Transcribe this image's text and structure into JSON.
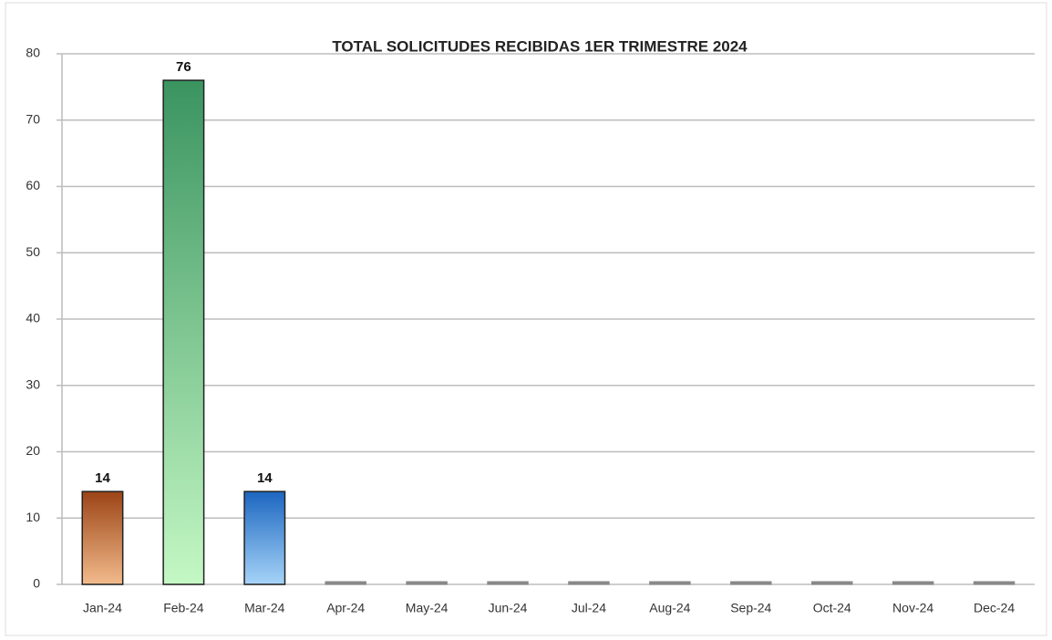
{
  "chart_data": {
    "type": "bar",
    "title": "TOTAL SOLICITUDES RECIBIDAS  1ER TRIMESTRE 2024",
    "categories": [
      "Jan-24",
      "Feb-24",
      "Mar-24",
      "Apr-24",
      "May-24",
      "Jun-24",
      "Jul-24",
      "Aug-24",
      "Sep-24",
      "Oct-24",
      "Nov-24",
      "Dec-24"
    ],
    "values": [
      14,
      76,
      14,
      0,
      0,
      0,
      0,
      0,
      0,
      0,
      0,
      0
    ],
    "colors": [
      [
        "#9c4416",
        "#f2bb8c"
      ],
      [
        "#3a9460",
        "#c4f8c4"
      ],
      [
        "#1c66c0",
        "#a6d4f8"
      ],
      [
        "#888888",
        "#888888"
      ],
      [
        "#888888",
        "#888888"
      ],
      [
        "#888888",
        "#888888"
      ],
      [
        "#888888",
        "#888888"
      ],
      [
        "#888888",
        "#888888"
      ],
      [
        "#888888",
        "#888888"
      ],
      [
        "#888888",
        "#888888"
      ],
      [
        "#888888",
        "#888888"
      ],
      [
        "#888888",
        "#888888"
      ]
    ],
    "ylim": [
      0,
      80
    ],
    "yticks": [
      0,
      10,
      20,
      30,
      40,
      50,
      60,
      70,
      80
    ],
    "grid": true
  }
}
